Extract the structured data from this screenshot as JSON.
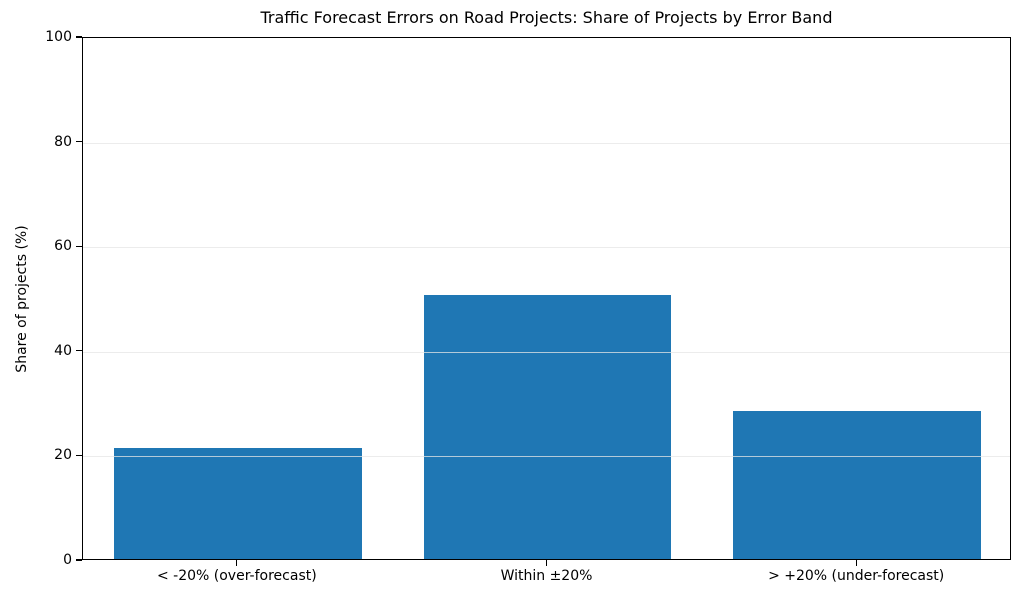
{
  "chart_data": {
    "type": "bar",
    "title": "Traffic Forecast Errors on Road Projects: Share of Projects by Error Band",
    "xlabel": "",
    "ylabel": "Share of projects (%)",
    "categories": [
      "< -20% (over-forecast)",
      "Within ±20%",
      "> +20% (under-forecast)"
    ],
    "values": [
      21.3,
      50.4,
      28.3
    ],
    "ylim": [
      0,
      100
    ],
    "yticks": [
      0,
      20,
      40,
      60,
      80,
      100
    ],
    "bar_color": "#1f77b4",
    "grid": "horizontal",
    "grid_color": "#e5e5e5",
    "legend": "none",
    "background": "#ffffff"
  }
}
